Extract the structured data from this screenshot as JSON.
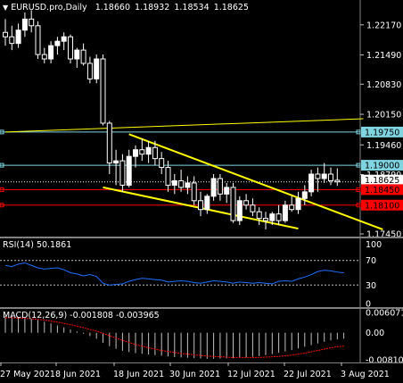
{
  "header": {
    "symbol_line": "EURUSD.pro,Daily",
    "open": "1.18660",
    "high": "1.18932",
    "low": "1.18534",
    "close": "1.18625"
  },
  "price_axis": {
    "ticks": [
      "1.22170",
      "1.21490",
      "1.20830",
      "1.20150",
      "1.19460",
      "1.18790",
      "1.17450"
    ]
  },
  "price_labels": [
    {
      "text": "1.19750",
      "color": "#7fd4e0"
    },
    {
      "text": "1.19000",
      "color": "#7fd4e0"
    },
    {
      "text": "1.18625",
      "color": "#ffffff"
    },
    {
      "text": "1.18450",
      "color": "#ff0000"
    },
    {
      "text": "1.18100",
      "color": "#ff0000"
    }
  ],
  "rsi": {
    "title": "RSI(14) 50.1861",
    "levels": [
      "70",
      "30",
      "0"
    ],
    "axis_top": "100"
  },
  "macd": {
    "title": "MACD(12,26,9) -0.001808 -0.003965",
    "axis": [
      "0.006071",
      "0.00",
      "-0.008101"
    ]
  },
  "x_axis": {
    "labels": [
      "27 May 2021",
      "8 Jun 2021",
      "18 Jun 2021",
      "30 Jun 2021",
      "12 Jul 2021",
      "22 Jul 2021",
      "3 Aug 2021"
    ]
  },
  "colors": {
    "background": "#000000",
    "candle_bull": "#ffffff",
    "candle_bear": "#000000",
    "channel": "#ffff00",
    "support_lines": "#ff0000",
    "resistance_lines": "#7fd4e0",
    "rsi_line": "#1e6fff",
    "macd_hist": "#c0c0c0",
    "macd_signal": "#ff0000"
  },
  "chart_data": {
    "type": "candlestick",
    "price_range": [
      1.1745,
      1.2265
    ],
    "candles": [
      {
        "o": 1.22,
        "h": 1.223,
        "l": 1.217,
        "c": 1.219
      },
      {
        "o": 1.219,
        "h": 1.2215,
        "l": 1.216,
        "c": 1.2175
      },
      {
        "o": 1.2175,
        "h": 1.222,
        "l": 1.2165,
        "c": 1.2205
      },
      {
        "o": 1.2205,
        "h": 1.2245,
        "l": 1.219,
        "c": 1.223
      },
      {
        "o": 1.223,
        "h": 1.225,
        "l": 1.22,
        "c": 1.2215
      },
      {
        "o": 1.2215,
        "h": 1.2225,
        "l": 1.214,
        "c": 1.215
      },
      {
        "o": 1.215,
        "h": 1.2165,
        "l": 1.213,
        "c": 1.214
      },
      {
        "o": 1.214,
        "h": 1.218,
        "l": 1.213,
        "c": 1.217
      },
      {
        "o": 1.217,
        "h": 1.219,
        "l": 1.215,
        "c": 1.218
      },
      {
        "o": 1.218,
        "h": 1.22,
        "l": 1.216,
        "c": 1.219
      },
      {
        "o": 1.219,
        "h": 1.2195,
        "l": 1.213,
        "c": 1.214
      },
      {
        "o": 1.214,
        "h": 1.2165,
        "l": 1.212,
        "c": 1.216
      },
      {
        "o": 1.216,
        "h": 1.2175,
        "l": 1.2125,
        "c": 1.213
      },
      {
        "o": 1.213,
        "h": 1.2145,
        "l": 1.2085,
        "c": 1.2095
      },
      {
        "o": 1.2095,
        "h": 1.215,
        "l": 1.2085,
        "c": 1.214
      },
      {
        "o": 1.214,
        "h": 1.215,
        "l": 1.199,
        "c": 1.1995
      },
      {
        "o": 1.1995,
        "h": 1.2,
        "l": 1.188,
        "c": 1.1905
      },
      {
        "o": 1.1905,
        "h": 1.1935,
        "l": 1.1855,
        "c": 1.191
      },
      {
        "o": 1.191,
        "h": 1.1925,
        "l": 1.184,
        "c": 1.1855
      },
      {
        "o": 1.1855,
        "h": 1.1935,
        "l": 1.185,
        "c": 1.192
      },
      {
        "o": 1.192,
        "h": 1.1945,
        "l": 1.1895,
        "c": 1.1935
      },
      {
        "o": 1.1935,
        "h": 1.196,
        "l": 1.191,
        "c": 1.1925
      },
      {
        "o": 1.1925,
        "h": 1.1955,
        "l": 1.1905,
        "c": 1.194
      },
      {
        "o": 1.194,
        "h": 1.1955,
        "l": 1.19,
        "c": 1.1915
      },
      {
        "o": 1.1915,
        "h": 1.193,
        "l": 1.188,
        "c": 1.1895
      },
      {
        "o": 1.1895,
        "h": 1.191,
        "l": 1.184,
        "c": 1.1855
      },
      {
        "o": 1.1855,
        "h": 1.188,
        "l": 1.1835,
        "c": 1.1865
      },
      {
        "o": 1.1865,
        "h": 1.189,
        "l": 1.184,
        "c": 1.185
      },
      {
        "o": 1.185,
        "h": 1.1875,
        "l": 1.1835,
        "c": 1.186
      },
      {
        "o": 1.186,
        "h": 1.1875,
        "l": 1.181,
        "c": 1.182
      },
      {
        "o": 1.182,
        "h": 1.184,
        "l": 1.1785,
        "c": 1.18
      },
      {
        "o": 1.18,
        "h": 1.1835,
        "l": 1.179,
        "c": 1.183
      },
      {
        "o": 1.183,
        "h": 1.188,
        "l": 1.182,
        "c": 1.187
      },
      {
        "o": 1.187,
        "h": 1.188,
        "l": 1.182,
        "c": 1.1835
      },
      {
        "o": 1.1835,
        "h": 1.186,
        "l": 1.1815,
        "c": 1.185
      },
      {
        "o": 1.185,
        "h": 1.186,
        "l": 1.177,
        "c": 1.1775
      },
      {
        "o": 1.1775,
        "h": 1.183,
        "l": 1.1765,
        "c": 1.182
      },
      {
        "o": 1.182,
        "h": 1.1835,
        "l": 1.18,
        "c": 1.181
      },
      {
        "o": 1.181,
        "h": 1.1825,
        "l": 1.1785,
        "c": 1.1795
      },
      {
        "o": 1.1795,
        "h": 1.1805,
        "l": 1.1765,
        "c": 1.178
      },
      {
        "o": 1.178,
        "h": 1.1795,
        "l": 1.1755,
        "c": 1.1775
      },
      {
        "o": 1.1775,
        "h": 1.1795,
        "l": 1.1765,
        "c": 1.179
      },
      {
        "o": 1.179,
        "h": 1.181,
        "l": 1.1765,
        "c": 1.1775
      },
      {
        "o": 1.1775,
        "h": 1.182,
        "l": 1.177,
        "c": 1.181
      },
      {
        "o": 1.181,
        "h": 1.183,
        "l": 1.1795,
        "c": 1.18
      },
      {
        "o": 1.18,
        "h": 1.184,
        "l": 1.179,
        "c": 1.1825
      },
      {
        "o": 1.1825,
        "h": 1.1855,
        "l": 1.181,
        "c": 1.184
      },
      {
        "o": 1.184,
        "h": 1.189,
        "l": 1.183,
        "c": 1.188
      },
      {
        "o": 1.188,
        "h": 1.1895,
        "l": 1.184,
        "c": 1.187
      },
      {
        "o": 1.187,
        "h": 1.1905,
        "l": 1.186,
        "c": 1.188
      },
      {
        "o": 1.188,
        "h": 1.1895,
        "l": 1.1855,
        "c": 1.1865
      },
      {
        "o": 1.1866,
        "h": 1.18932,
        "l": 1.18534,
        "c": 1.18625
      }
    ],
    "horizontal_levels": [
      {
        "price": 1.1975,
        "color": "#7fd4e0"
      },
      {
        "price": 1.19,
        "color": "#7fd4e0"
      },
      {
        "price": 1.18625,
        "color": "#ffffff"
      },
      {
        "price": 1.1845,
        "color": "#ff0000"
      },
      {
        "price": 1.181,
        "color": "#ff0000"
      }
    ],
    "trendlines": [
      {
        "from": {
          "bar": 0,
          "price": 1.1975
        },
        "to": {
          "bar": 55,
          "price": 1.2005
        }
      },
      {
        "from": {
          "bar": 19,
          "price": 1.197
        },
        "to": {
          "bar": 58,
          "price": 1.1755
        }
      },
      {
        "from": {
          "bar": 15,
          "price": 1.185
        },
        "to": {
          "bar": 45,
          "price": 1.1757
        }
      }
    ],
    "rsi_values": [
      62,
      60,
      64,
      66,
      62,
      58,
      56,
      57,
      58,
      55,
      50,
      48,
      45,
      47,
      44,
      33,
      30,
      31,
      32,
      36,
      39,
      41,
      40,
      39,
      38,
      35,
      36,
      37,
      36,
      34,
      33,
      35,
      37,
      36,
      35,
      33,
      35,
      34,
      33,
      34,
      33,
      32,
      36,
      37,
      36,
      40,
      43,
      47,
      52,
      54,
      53,
      51,
      50
    ],
    "macd_hist": [
      0.005,
      0.0049,
      0.0047,
      0.0045,
      0.0042,
      0.0038,
      0.0033,
      0.0028,
      0.0022,
      0.0016,
      0.001,
      0.0004,
      -0.0003,
      -0.001,
      -0.0018,
      -0.003,
      -0.004,
      -0.0048,
      -0.0054,
      -0.0058,
      -0.0061,
      -0.0063,
      -0.0065,
      -0.0067,
      -0.0069,
      -0.0071,
      -0.0073,
      -0.0074,
      -0.0075,
      -0.0076,
      -0.0077,
      -0.0078,
      -0.0078,
      -0.0077,
      -0.0077,
      -0.0076,
      -0.0075,
      -0.0074,
      -0.0072,
      -0.007,
      -0.0067,
      -0.0064,
      -0.006,
      -0.0056,
      -0.0052,
      -0.0047,
      -0.0042,
      -0.0037,
      -0.0032,
      -0.0027,
      -0.0023,
      -0.002,
      -0.0018
    ],
    "macd_signal": [
      0.0045,
      0.0045,
      0.0044,
      0.0043,
      0.0042,
      0.004,
      0.0038,
      0.0035,
      0.0032,
      0.0028,
      0.0024,
      0.002,
      0.0015,
      0.001,
      0.0005,
      -0.0002,
      -0.0009,
      -0.0016,
      -0.0023,
      -0.0029,
      -0.0035,
      -0.004,
      -0.0045,
      -0.0049,
      -0.0053,
      -0.0056,
      -0.0059,
      -0.0062,
      -0.0064,
      -0.0066,
      -0.0068,
      -0.007,
      -0.0071,
      -0.0072,
      -0.0073,
      -0.0074,
      -0.0074,
      -0.0074,
      -0.0074,
      -0.0074,
      -0.0073,
      -0.0072,
      -0.0071,
      -0.0069,
      -0.0067,
      -0.0064,
      -0.0061,
      -0.0057,
      -0.0053,
      -0.0049,
      -0.0045,
      -0.0042,
      -0.004
    ]
  }
}
